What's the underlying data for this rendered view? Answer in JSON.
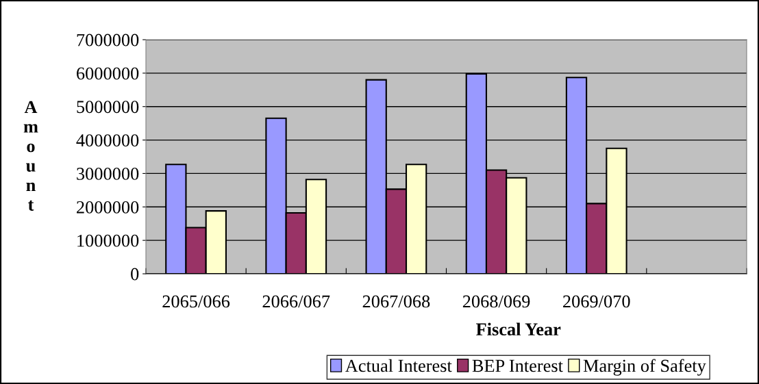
{
  "chart_data": {
    "type": "bar",
    "xlabel": "Fiscal Year",
    "ylabel": "Amount",
    "categories": [
      "2065/066",
      "2066/067",
      "2067/068",
      "2068/069",
      "2069/070",
      null
    ],
    "series": [
      {
        "name": "Actual Interest",
        "color": "#9999ff",
        "values": [
          3270000,
          4650000,
          5800000,
          5980000,
          5870000,
          null
        ]
      },
      {
        "name": "BEP Interest",
        "color": "#993366",
        "values": [
          1380000,
          1820000,
          2530000,
          3100000,
          2100000,
          null
        ]
      },
      {
        "name": "Margin of Safety",
        "color": "#ffffcc",
        "values": [
          1880000,
          2820000,
          3270000,
          2870000,
          3750000,
          null
        ]
      }
    ],
    "ylim": [
      0,
      7000000
    ],
    "yticks": [
      0,
      1000000,
      2000000,
      3000000,
      4000000,
      5000000,
      6000000,
      7000000
    ],
    "grid": "y",
    "legend": "bottom"
  }
}
